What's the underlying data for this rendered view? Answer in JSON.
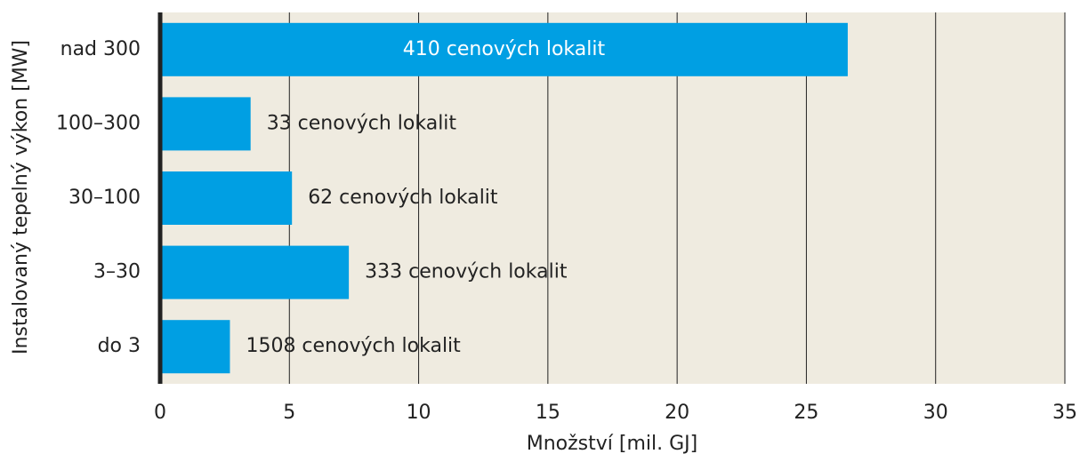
{
  "chart_data": {
    "type": "bar",
    "orientation": "horizontal",
    "x_label": "Množství [mil. GJ]",
    "y_label": "Instalovaný tepelný výkon [MW]",
    "categories": [
      "nad 300",
      "100–300",
      "30–100",
      "3–30",
      "do 3"
    ],
    "values": [
      26.6,
      3.5,
      5.1,
      7.3,
      2.7
    ],
    "annotations": [
      "410 cenových lokalit",
      "33 cenových lokalit",
      "62 cenových lokalit",
      "333 cenových lokalit",
      "1508 cenových lokalit"
    ],
    "color": "#009fe3",
    "xlim": [
      0,
      35
    ],
    "xticks": [
      0,
      5,
      10,
      15,
      20,
      25,
      30,
      35
    ],
    "grid": true
  }
}
